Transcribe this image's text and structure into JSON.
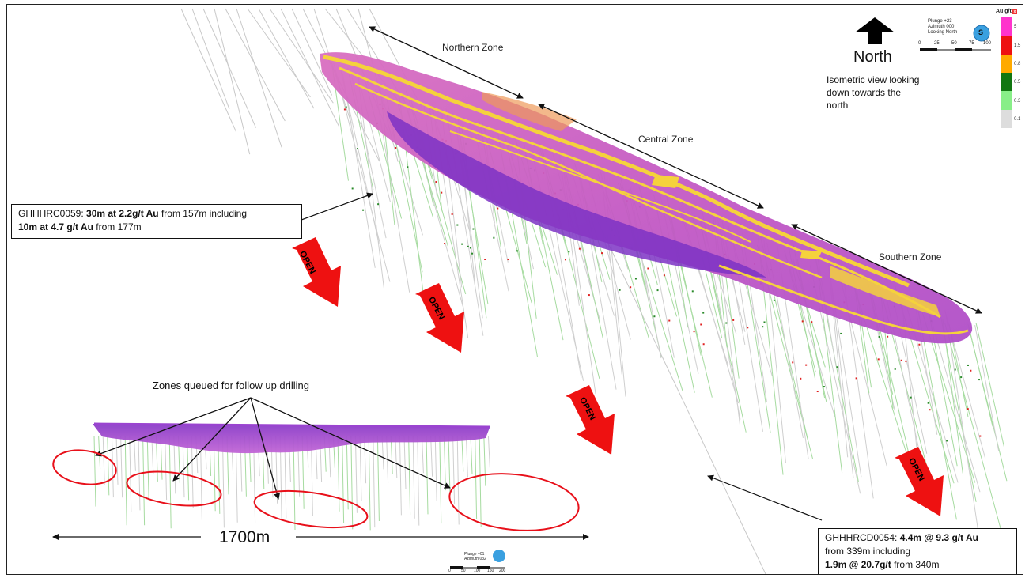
{
  "zones": {
    "northern": "Northern Zone",
    "central": "Central Zone",
    "southern": "Southern Zone"
  },
  "north": {
    "label": "North",
    "description_line1": "Isometric view looking",
    "description_line2": "down towards the",
    "description_line3": "north"
  },
  "scalebar_top": {
    "line1": "Plunge +23",
    "line2": "Azimuth 000",
    "line3": "Looking North",
    "ticks": [
      "0",
      "25",
      "50",
      "75",
      "100"
    ],
    "compass_letter": "S"
  },
  "scalebar_bottom": {
    "line1": "Plunge +01",
    "line2": "Azimuth 032",
    "ticks": [
      "0",
      "50",
      "100",
      "150",
      "200"
    ]
  },
  "legend": {
    "title": "Au g/t",
    "values": [
      "5",
      "1.5",
      "0.8",
      "0.5",
      "0.3",
      "0.1"
    ],
    "colors": [
      "#ff33cc",
      "#ee1111",
      "#ffaa00",
      "#117711",
      "#88ee88",
      "#dddddd"
    ]
  },
  "callout_left": {
    "hole": "GHHHRC0059: ",
    "int1": "30m at 2.2g/t Au",
    "from1": " from 157m including",
    "int2": "10m at 4.7 g/t Au",
    "from2": " from 177m"
  },
  "callout_right": {
    "hole": "GHHHRCD0054: ",
    "int1": "4.4m @ 9.3 g/t Au",
    "from1": "from 339m including",
    "int2": "1.9m @ 20.7g/t",
    "from2": " from 340m"
  },
  "open_label": "OPEN",
  "queued_label": "Zones queued for follow up drilling",
  "distance_label": "1700m",
  "colors": {
    "orebody_magenta": "#c45ac4",
    "orebody_purple": "#8a3cc8",
    "orebody_yellow": "#f5d23c",
    "arrow_red": "#ee1111",
    "ellipse_red": "#e8101a"
  }
}
